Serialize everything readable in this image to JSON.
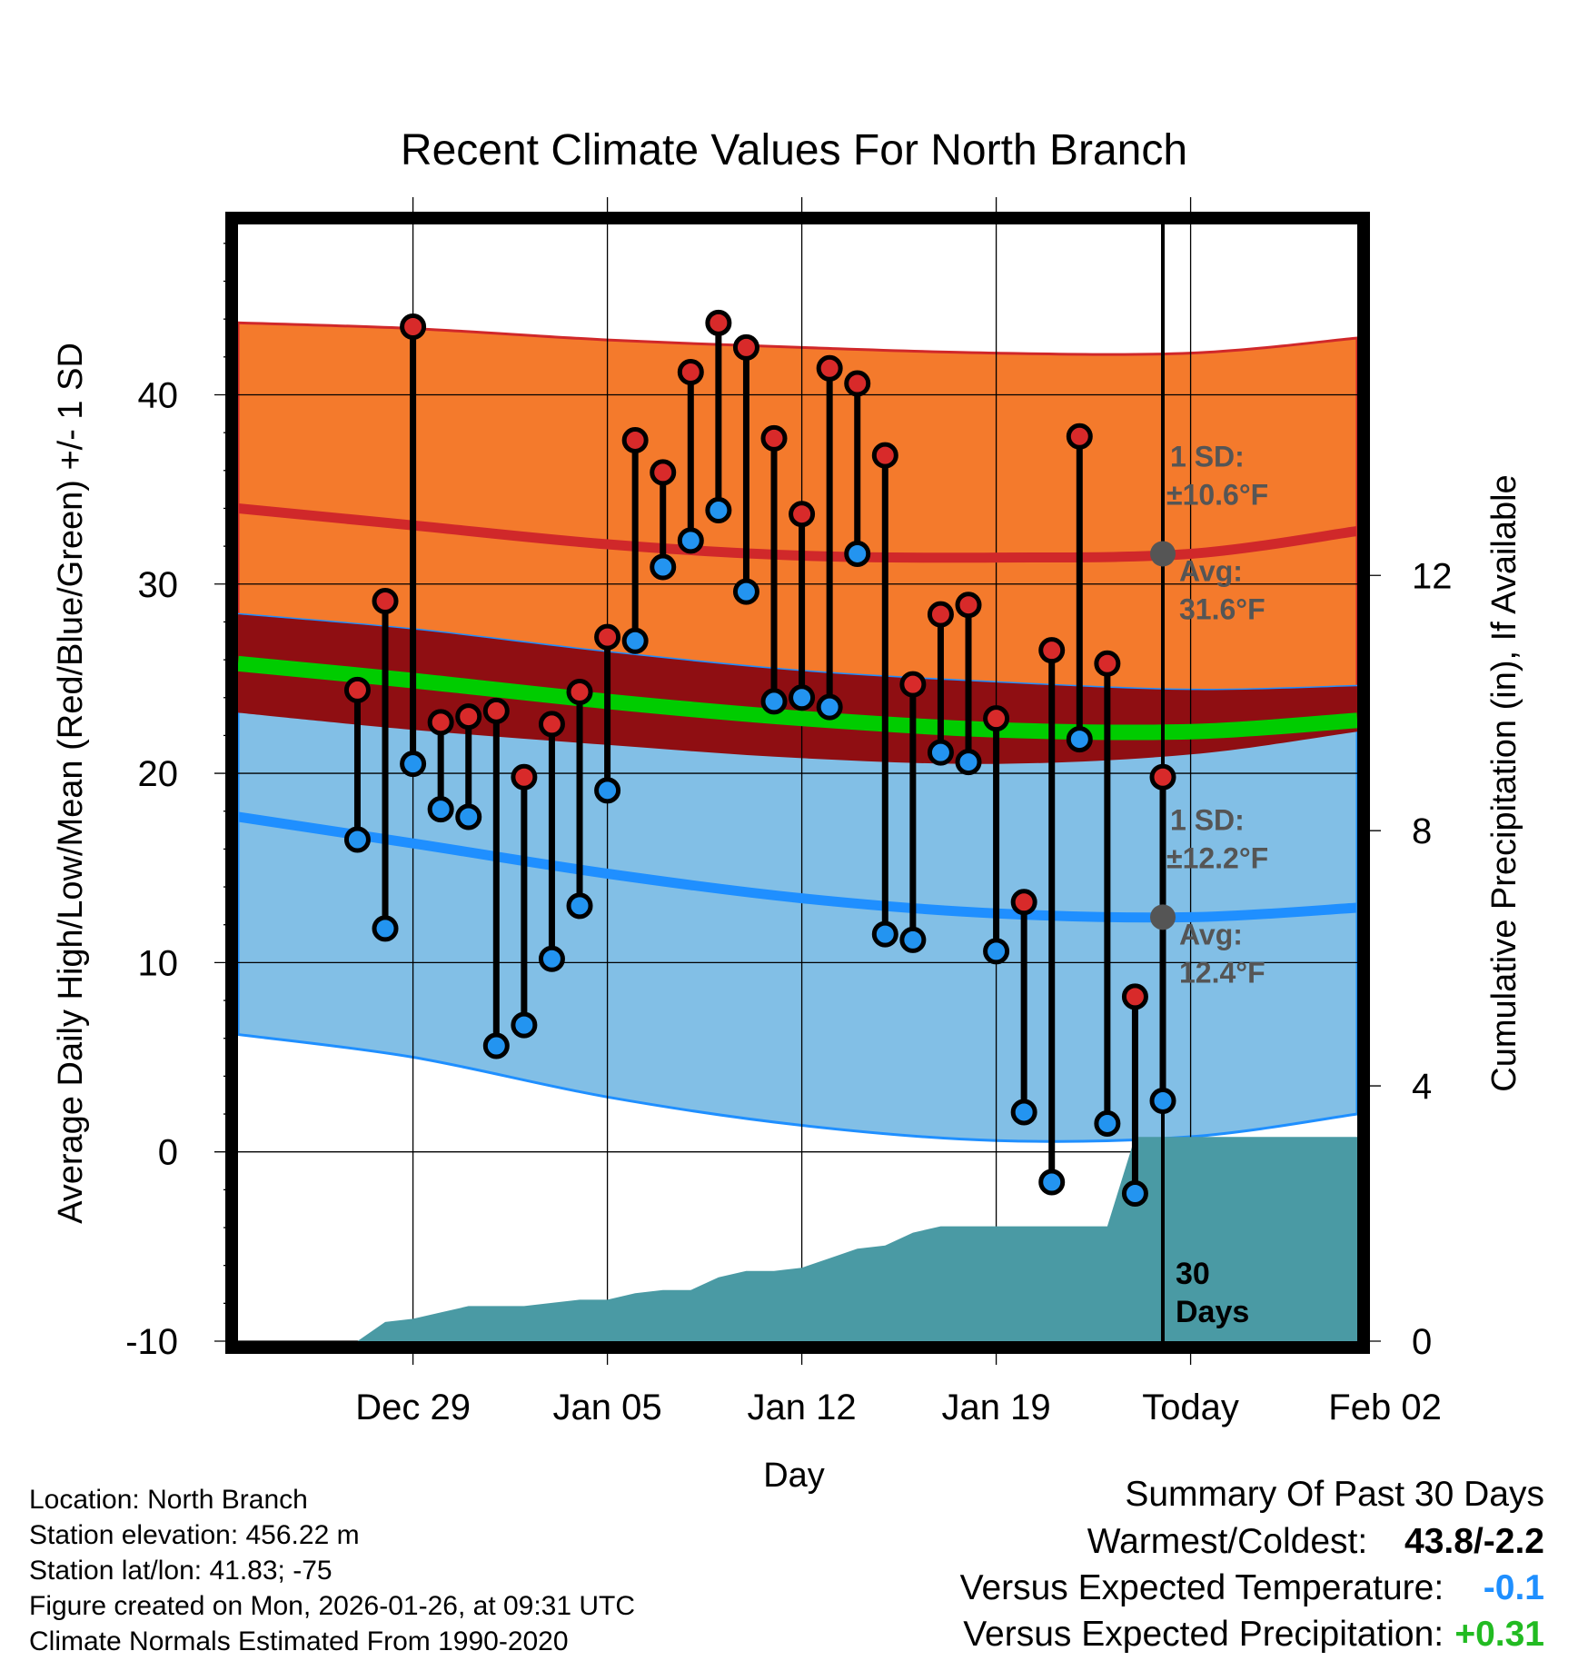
{
  "chart_data": {
    "type": "line",
    "title": "Recent Climate Values For North Branch",
    "xlabel": "Day",
    "ylabel": "Average Daily High/Low/Mean (Red/Blue/Green) +/- 1 SD",
    "y2label": "Cumulative Precipitation (in), If Available",
    "xlim": [
      -3.3,
      37.0
    ],
    "ylim": [
      -10,
      49
    ],
    "y2lim": [
      0,
      17.5
    ],
    "grid": true,
    "today_index": 30,
    "x_ticks": [
      {
        "day": 3,
        "label": "Dec 29"
      },
      {
        "day": 10,
        "label": "Jan 05"
      },
      {
        "day": 17,
        "label": "Jan 12"
      },
      {
        "day": 24,
        "label": "Jan 19"
      },
      {
        "day": 31,
        "label": "Today"
      },
      {
        "day": 38,
        "label": "Feb 02"
      }
    ],
    "y_ticks": [
      -10,
      0,
      10,
      20,
      30,
      40
    ],
    "y2_ticks": [
      0,
      4,
      8,
      12
    ],
    "normal_days": [
      -3.3,
      3,
      10,
      17,
      24,
      31,
      37
    ],
    "normal_high": [
      34.0,
      33.1,
      32.1,
      31.5,
      31.4,
      31.6,
      32.8
    ],
    "normal_high_upper": [
      43.8,
      43.5,
      42.9,
      42.5,
      42.2,
      42.2,
      43.0
    ],
    "normal_high_lower": [
      23.2,
      22.3,
      21.5,
      20.8,
      20.5,
      21.0,
      22.2
    ],
    "normal_mean": [
      25.8,
      24.9,
      23.8,
      22.9,
      22.3,
      22.2,
      22.8
    ],
    "normal_low": [
      17.7,
      16.3,
      14.7,
      13.4,
      12.6,
      12.4,
      12.9
    ],
    "normal_low_upper": [
      28.4,
      27.6,
      26.4,
      25.4,
      24.8,
      24.4,
      24.6
    ],
    "normal_low_lower": [
      6.2,
      5.0,
      2.9,
      1.4,
      0.6,
      0.8,
      2.0
    ],
    "observed": {
      "days": [
        1,
        2,
        3,
        4,
        5,
        6,
        7,
        8,
        9,
        10,
        11,
        12,
        13,
        14,
        15,
        16,
        17,
        18,
        19,
        20,
        21,
        22,
        23,
        24,
        25,
        26,
        27,
        28,
        29,
        30
      ],
      "highs": [
        24.4,
        29.1,
        43.6,
        22.7,
        23.0,
        23.3,
        19.8,
        22.6,
        24.3,
        27.2,
        37.6,
        35.9,
        41.2,
        43.8,
        42.5,
        37.7,
        33.7,
        41.4,
        40.6,
        36.8,
        24.7,
        28.4,
        28.9,
        22.9,
        13.2,
        26.5,
        37.8,
        25.8,
        8.2,
        19.8
      ],
      "lows": [
        16.5,
        11.8,
        20.5,
        18.1,
        17.7,
        5.6,
        6.7,
        10.2,
        13.0,
        19.1,
        27.0,
        30.9,
        32.3,
        33.9,
        29.6,
        23.8,
        24.0,
        23.5,
        31.6,
        11.5,
        11.2,
        21.1,
        20.6,
        10.6,
        2.1,
        -1.6,
        21.8,
        1.5,
        -2.2,
        2.7
      ]
    },
    "precip_days": [
      -3.3,
      1,
      2,
      3,
      4,
      5,
      6,
      7,
      8,
      9,
      10,
      11,
      12,
      13,
      14,
      15,
      16,
      17,
      18,
      19,
      20,
      21,
      22,
      23,
      24,
      25,
      26,
      27,
      28,
      29,
      30,
      37
    ],
    "precip_cumulative": [
      0,
      0,
      0.3,
      0.35,
      0.45,
      0.55,
      0.55,
      0.55,
      0.6,
      0.65,
      0.65,
      0.75,
      0.8,
      0.8,
      1.0,
      1.1,
      1.1,
      1.15,
      1.3,
      1.45,
      1.5,
      1.7,
      1.8,
      1.8,
      1.8,
      1.8,
      1.8,
      1.8,
      1.8,
      3.2,
      3.2,
      3.2
    ],
    "annotations": {
      "high_sd_label": "1 SD:",
      "high_sd_value": "±10.6°F",
      "high_avg_label": "Avg:",
      "high_avg_value": "31.6°F",
      "high_avg": 31.6,
      "low_sd_label": "1 SD:",
      "low_sd_value": "±12.2°F",
      "low_avg_label": "Avg:",
      "low_avg_value": "12.4°F",
      "low_avg": 12.4,
      "period_label_num": "30",
      "period_label_unit": "Days"
    },
    "colors": {
      "high_band": "#f47a2c",
      "overlap_band": "#8f0e12",
      "low_band": "#82bfe6",
      "high_line": "#d0282a",
      "mean_line": "#00cc00",
      "low_line": "#1f8fff",
      "band_edge_low": "#1f8fff",
      "precip": "#4a9aa4",
      "high_dot": "#d82a2a",
      "low_dot": "#2394f0",
      "annotation": "#555555"
    }
  },
  "info": {
    "location": "Location: North Branch",
    "elevation": "Station elevation: 456.22 m",
    "latlon": "Station lat/lon: 41.83; -75",
    "created": "Figure created on Mon, 2026-01-26, at 09:31 UTC",
    "normals": "Climate Normals Estimated From 1990-2020"
  },
  "summary": {
    "title": "Summary Of Past 30 Days",
    "warm_cold_label": "Warmest/Coldest:",
    "warm_cold_value": "43.8/-2.2",
    "temp_label": "Versus Expected Temperature:",
    "temp_value": "-0.1",
    "temp_color": "#1f8fff",
    "precip_label": "Versus Expected Precipitation:",
    "precip_value": "+0.31",
    "precip_color": "#22bb22"
  }
}
